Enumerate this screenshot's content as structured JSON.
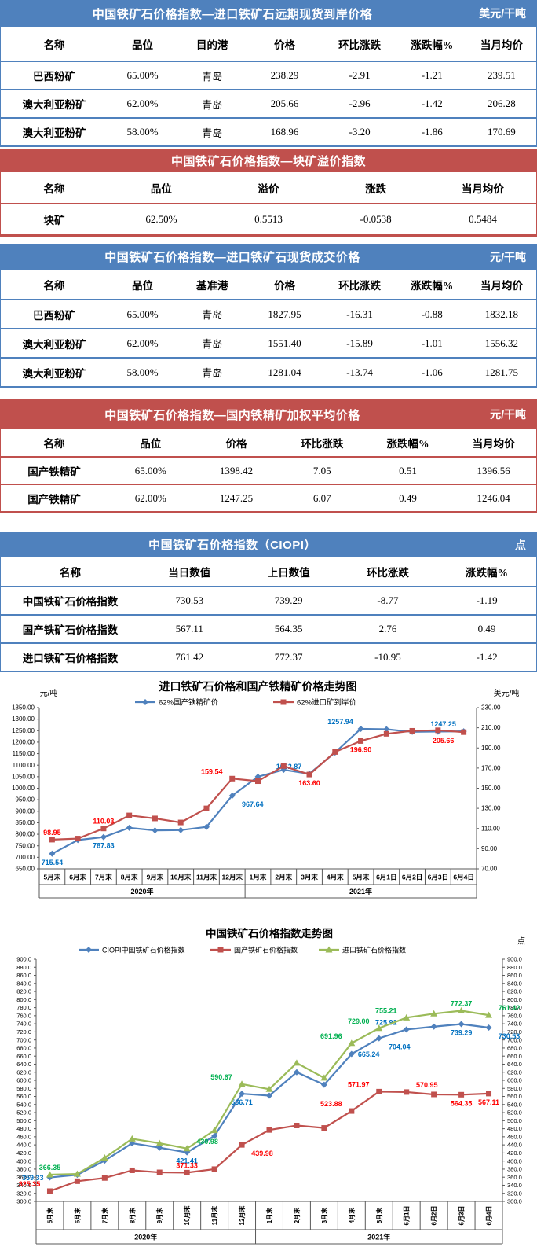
{
  "colors": {
    "blue_header": "#4F81BD",
    "red_header": "#C0504D",
    "blue_line": "#4F81BD",
    "red_line": "#C0504D",
    "green_line": "#9BBB59",
    "blue_label": "#0070C0",
    "red_label": "#FF0000",
    "green_label": "#00B050",
    "axis_line": "#595959"
  },
  "tables": [
    {
      "theme": "blue",
      "title": "中国铁矿石价格指数—进口铁矿石远期现货到岸价格",
      "unit": "美元/干吨",
      "headers": [
        "名称",
        "品位",
        "目的港",
        "价格",
        "环比涨跌",
        "涨跌幅%",
        "当月均价"
      ],
      "rows": [
        [
          "巴西粉矿",
          "65.00%",
          "青岛",
          "238.29",
          "-2.91",
          "-1.21",
          "239.51"
        ],
        [
          "澳大利亚粉矿",
          "62.00%",
          "青岛",
          "205.66",
          "-2.96",
          "-1.42",
          "206.28"
        ],
        [
          "澳大利亚粉矿",
          "58.00%",
          "青岛",
          "168.96",
          "-3.20",
          "-1.86",
          "170.69"
        ]
      ]
    },
    {
      "theme": "red",
      "title": "中国铁矿石价格指数—块矿溢价指数",
      "unit": "",
      "headers": [
        "名称",
        "品位",
        "溢价",
        "涨跌",
        "当月均价"
      ],
      "rows": [
        [
          "块矿",
          "62.50%",
          "0.5513",
          "-0.0538",
          "0.5484"
        ]
      ]
    },
    {
      "theme": "blue",
      "title": "中国铁矿石价格指数—进口铁矿石现货成交价格",
      "unit": "元/干吨",
      "headers": [
        "名称",
        "品位",
        "基准港",
        "价格",
        "环比涨跌",
        "涨跌幅%",
        "当月均价"
      ],
      "rows": [
        [
          "巴西粉矿",
          "65.00%",
          "青岛",
          "1827.95",
          "-16.31",
          "-0.88",
          "1832.18"
        ],
        [
          "澳大利亚粉矿",
          "62.00%",
          "青岛",
          "1551.40",
          "-15.89",
          "-1.01",
          "1556.32"
        ],
        [
          "澳大利亚粉矿",
          "58.00%",
          "青岛",
          "1281.04",
          "-13.74",
          "-1.06",
          "1281.75"
        ]
      ]
    },
    {
      "theme": "red",
      "title": "中国铁矿石价格指数—国内铁精矿加权平均价格",
      "unit": "元/干吨",
      "headers": [
        "名称",
        "品位",
        "价格",
        "环比涨跌",
        "涨跌幅%",
        "当月均价"
      ],
      "rows": [
        [
          "国产铁精矿",
          "65.00%",
          "1398.42",
          "7.05",
          "0.51",
          "1396.56"
        ],
        [
          "国产铁精矿",
          "62.00%",
          "1247.25",
          "6.07",
          "0.49",
          "1246.04"
        ]
      ]
    },
    {
      "theme": "blue",
      "title": "中国铁矿石价格指数（CIOPI）",
      "unit": "点",
      "headers": [
        "名称",
        "当日数值",
        "上日数值",
        "环比涨跌",
        "涨跌幅%"
      ],
      "rows": [
        [
          "中国铁矿石价格指数",
          "730.53",
          "739.29",
          "-8.77",
          "-1.19"
        ],
        [
          "国产铁矿石价格指数",
          "567.11",
          "564.35",
          "2.76",
          "0.49"
        ],
        [
          "进口铁矿石价格指数",
          "761.42",
          "772.37",
          "-10.95",
          "-1.42"
        ]
      ]
    }
  ],
  "chart_data": [
    {
      "type": "line",
      "title": "进口铁矿石价格和国产铁精矿价格走势图",
      "left_axis": {
        "label": "元/吨",
        "min": 650,
        "max": 1350,
        "step": 50,
        "decimals": 2
      },
      "right_axis": {
        "label": "美元/吨",
        "min": 70,
        "max": 230,
        "step": 20,
        "decimals": 2
      },
      "categories": [
        "5月末",
        "6月末",
        "7月末",
        "8月末",
        "9月末",
        "10月末",
        "11月末",
        "12月末",
        "1月末",
        "2月末",
        "3月末",
        "4月末",
        "5月末",
        "6月1日",
        "6月2日",
        "6月3日",
        "6月4日"
      ],
      "year_groups": [
        {
          "label": "2020年",
          "span": 8
        },
        {
          "label": "2021年",
          "span": 9
        }
      ],
      "grid": false,
      "legend_position": "top",
      "series": [
        {
          "name": "62%国产铁精矿价",
          "axis": "left",
          "color": "#4F81BD",
          "label_color": "#0070C0",
          "marker": "diamond",
          "values": [
            715.54,
            775,
            787.83,
            828,
            817,
            818,
            832,
            967.64,
            1050,
            1080,
            1062.87,
            1155,
            1257.94,
            1256,
            1245,
            1246,
            1247.25
          ],
          "labels": [
            {
              "i": 0,
              "text": "715.54",
              "pos": "below"
            },
            {
              "i": 2,
              "text": "787.83",
              "pos": "below"
            },
            {
              "i": 7,
              "text": "967.64",
              "pos": "below-right"
            },
            {
              "i": 10,
              "text": "1062.87",
              "pos": "above-left"
            },
            {
              "i": 12,
              "text": "1257.94",
              "pos": "above-left"
            },
            {
              "i": 16,
              "text": "1247.25",
              "pos": "above-left"
            }
          ]
        },
        {
          "name": "62%进口矿到岸价",
          "axis": "right",
          "color": "#C0504D",
          "label_color": "#FF0000",
          "marker": "square",
          "values": [
            98.95,
            100,
            110.03,
            123,
            120,
            116,
            130,
            159.54,
            157,
            172,
            163.6,
            186,
            196.9,
            204,
            207,
            207.5,
            205.66
          ],
          "labels": [
            {
              "i": 0,
              "text": "98.95",
              "pos": "above"
            },
            {
              "i": 2,
              "text": "110.03",
              "pos": "above"
            },
            {
              "i": 7,
              "text": "159.54",
              "pos": "above-left"
            },
            {
              "i": 10,
              "text": "163.60",
              "pos": "below"
            },
            {
              "i": 12,
              "text": "196.90",
              "pos": "below"
            },
            {
              "i": 16,
              "text": "205.66",
              "pos": "below-left"
            }
          ]
        }
      ]
    },
    {
      "type": "line",
      "title": "中国铁矿石价格指数走势图",
      "unit": "点",
      "left_axis": {
        "label": "",
        "min": 300,
        "max": 900,
        "step": 20,
        "decimals": 1
      },
      "right_axis": {
        "label": "",
        "min": 300,
        "max": 900,
        "step": 20,
        "decimals": 1
      },
      "categories": [
        "5月末",
        "6月末",
        "7月末",
        "8月末",
        "9月末",
        "10月末",
        "11月末",
        "12月末",
        "1月末",
        "2月末",
        "3月末",
        "4月末",
        "5月末",
        "6月1日",
        "6月2日",
        "6月3日",
        "6月4日"
      ],
      "year_groups": [
        {
          "label": "2020年",
          "span": 8
        },
        {
          "label": "2021年",
          "span": 9
        }
      ],
      "grid": false,
      "legend_position": "top",
      "series": [
        {
          "name": "CIOPI中国铁矿石价格指数",
          "axis": "left",
          "color": "#4F81BD",
          "label_color": "#0070C0",
          "marker": "diamond",
          "values": [
            359.33,
            366,
            401,
            444,
            433,
            421.41,
            462,
            566.71,
            562,
            620,
            589,
            665.24,
            704.04,
            725.91,
            733,
            739.29,
            730.53
          ],
          "labels": [
            {
              "i": 0,
              "text": "359.33",
              "pos": "left"
            },
            {
              "i": 5,
              "text": "421.41",
              "pos": "below"
            },
            {
              "i": 7,
              "text": "566.71",
              "pos": "below"
            },
            {
              "i": 11,
              "text": "665.24",
              "pos": "right"
            },
            {
              "i": 12,
              "text": "704.04",
              "pos": "below-right"
            },
            {
              "i": 13,
              "text": "725.91",
              "pos": "above-left"
            },
            {
              "i": 15,
              "text": "739.29",
              "pos": "below"
            },
            {
              "i": 16,
              "text": "730.53",
              "pos": "below-right"
            }
          ]
        },
        {
          "name": "国产铁矿石价格指数",
          "axis": "left",
          "color": "#C0504D",
          "label_color": "#FF0000",
          "marker": "square",
          "values": [
            325.35,
            350,
            358,
            377,
            372,
            371.33,
            380,
            439.98,
            477,
            488,
            482,
            523.88,
            571.97,
            570.95,
            565,
            564.35,
            567.11
          ],
          "labels": [
            {
              "i": 0,
              "text": "325.35",
              "pos": "above-left"
            },
            {
              "i": 5,
              "text": "371.33",
              "pos": "above"
            },
            {
              "i": 7,
              "text": "439.98",
              "pos": "below-right"
            },
            {
              "i": 11,
              "text": "523.88",
              "pos": "above-left"
            },
            {
              "i": 12,
              "text": "571.97",
              "pos": "above-left"
            },
            {
              "i": 13,
              "text": "570.95",
              "pos": "above-right"
            },
            {
              "i": 15,
              "text": "564.35",
              "pos": "below"
            },
            {
              "i": 16,
              "text": "567.11",
              "pos": "below"
            }
          ]
        },
        {
          "name": "进口铁矿石价格指数",
          "axis": "left",
          "color": "#9BBB59",
          "label_color": "#00B050",
          "marker": "triangle",
          "values": [
            366.35,
            368,
            408,
            455,
            444,
            430.98,
            476,
            590.67,
            578,
            643,
            606,
            691.96,
            729,
            755.21,
            765,
            772.37,
            761.42
          ],
          "labels": [
            {
              "i": 0,
              "text": "366.35",
              "pos": "above"
            },
            {
              "i": 5,
              "text": "430.98",
              "pos": "above-right"
            },
            {
              "i": 7,
              "text": "590.67",
              "pos": "above-left"
            },
            {
              "i": 11,
              "text": "691.96",
              "pos": "above-left"
            },
            {
              "i": 12,
              "text": "729.00",
              "pos": "above-left"
            },
            {
              "i": 13,
              "text": "755.21",
              "pos": "above-left"
            },
            {
              "i": 15,
              "text": "772.37",
              "pos": "above"
            },
            {
              "i": 16,
              "text": "761.42",
              "pos": "above-right"
            }
          ]
        }
      ]
    }
  ]
}
